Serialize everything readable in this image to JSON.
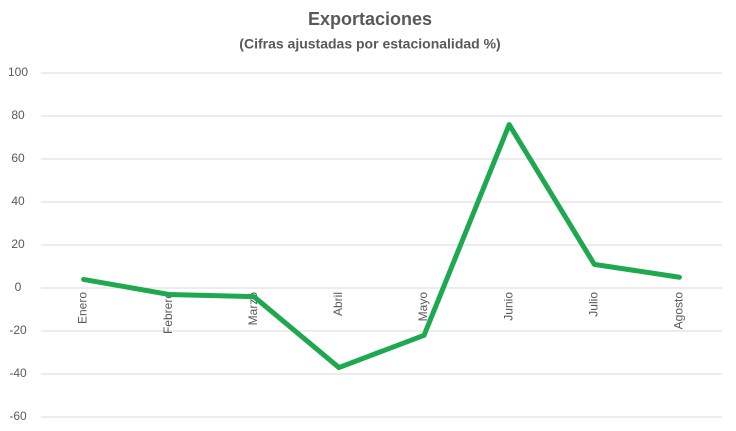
{
  "chart_data": {
    "type": "line",
    "title": "Exportaciones",
    "subtitle": "(Cifras ajustadas por estacionalidad %)",
    "categories": [
      "Enero",
      "Febrero",
      "Marzo",
      "Abril",
      "Mayo",
      "Junio",
      "Julio",
      "Agosto"
    ],
    "values": [
      4,
      -3,
      -4,
      -37,
      -22,
      76,
      11,
      5
    ],
    "color": "#1ea84f",
    "ylim": [
      -60,
      100
    ],
    "yticks": [
      -60,
      -40,
      -20,
      0,
      20,
      40,
      60,
      80,
      100
    ],
    "grid": true
  }
}
